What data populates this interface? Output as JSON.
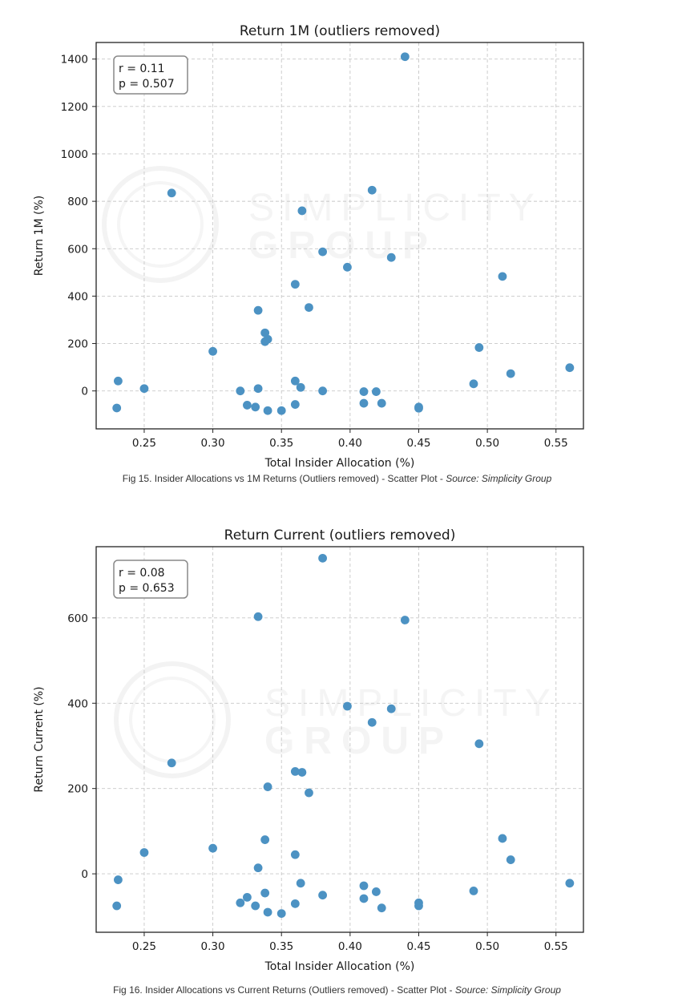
{
  "chart_data": [
    {
      "type": "scatter",
      "title": "Return 1M (outliers removed)",
      "xlabel": "Total Insider Allocation (%)",
      "ylabel": "Return 1M (%)",
      "xlim": [
        0.215,
        0.57
      ],
      "ylim": [
        -160,
        1470
      ],
      "xticks": [
        0.25,
        0.3,
        0.35,
        0.4,
        0.45,
        0.5,
        0.55
      ],
      "xtick_labels": [
        "0.25",
        "0.30",
        "0.35",
        "0.40",
        "0.45",
        "0.50",
        "0.55"
      ],
      "yticks": [
        0,
        200,
        400,
        600,
        800,
        1000,
        1200,
        1400
      ],
      "ytick_labels": [
        "0",
        "200",
        "400",
        "600",
        "800",
        "1000",
        "1200",
        "1400"
      ],
      "grid": true,
      "stats": [
        "r = 0.11",
        "p = 0.507"
      ],
      "color": "#4c92c3",
      "x": [
        0.23,
        0.231,
        0.25,
        0.27,
        0.3,
        0.32,
        0.325,
        0.331,
        0.333,
        0.333,
        0.338,
        0.338,
        0.34,
        0.34,
        0.35,
        0.36,
        0.36,
        0.36,
        0.364,
        0.365,
        0.37,
        0.38,
        0.38,
        0.398,
        0.41,
        0.41,
        0.416,
        0.419,
        0.423,
        0.43,
        0.44,
        0.45,
        0.45,
        0.49,
        0.494,
        0.511,
        0.517,
        0.56
      ],
      "y": [
        -72,
        42,
        10,
        835,
        167,
        0,
        -60,
        -68,
        340,
        10,
        245,
        208,
        218,
        -83,
        -83,
        450,
        42,
        -57,
        15,
        760,
        352,
        587,
        0,
        522,
        -3,
        -52,
        847,
        -3,
        -52,
        563,
        1410,
        -68,
        -73,
        30,
        183,
        483,
        73,
        98
      ]
    },
    {
      "type": "scatter",
      "title": "Return Current (outliers removed)",
      "xlabel": "Total Insider Allocation (%)",
      "ylabel": "Return Current (%)",
      "xlim": [
        0.215,
        0.57
      ],
      "ylim": [
        -137,
        767
      ],
      "xticks": [
        0.25,
        0.3,
        0.35,
        0.4,
        0.45,
        0.5,
        0.55
      ],
      "xtick_labels": [
        "0.25",
        "0.30",
        "0.35",
        "0.40",
        "0.45",
        "0.50",
        "0.55"
      ],
      "yticks": [
        0,
        200,
        400,
        600
      ],
      "ytick_labels": [
        "0",
        "200",
        "400",
        "600"
      ],
      "grid": true,
      "stats": [
        "r = 0.08",
        "p = 0.653"
      ],
      "color": "#4c92c3",
      "x": [
        0.23,
        0.231,
        0.25,
        0.27,
        0.3,
        0.32,
        0.325,
        0.331,
        0.333,
        0.333,
        0.338,
        0.338,
        0.34,
        0.34,
        0.35,
        0.36,
        0.36,
        0.36,
        0.364,
        0.365,
        0.37,
        0.38,
        0.38,
        0.398,
        0.41,
        0.41,
        0.416,
        0.419,
        0.423,
        0.43,
        0.44,
        0.45,
        0.45,
        0.49,
        0.494,
        0.511,
        0.517,
        0.56
      ],
      "y": [
        -75,
        -14,
        50,
        260,
        60,
        -68,
        -55,
        -75,
        603,
        14,
        -45,
        80,
        204,
        -90,
        -93,
        240,
        45,
        -70,
        -22,
        238,
        190,
        740,
        -50,
        393,
        -28,
        -58,
        355,
        -42,
        -80,
        387,
        595,
        -68,
        -75,
        -40,
        305,
        83,
        33,
        -22
      ]
    }
  ],
  "captions": [
    {
      "text": "Fig 15. Insider Allocations vs 1M Returns (Outliers removed) - Scatter Plot - ",
      "source": "Source: Simplicity Group"
    },
    {
      "text": "Fig 16. Insider Allocations vs Current Returns (Outliers removed) - Scatter Plot - ",
      "source": "Source: Simplicity Group"
    }
  ]
}
